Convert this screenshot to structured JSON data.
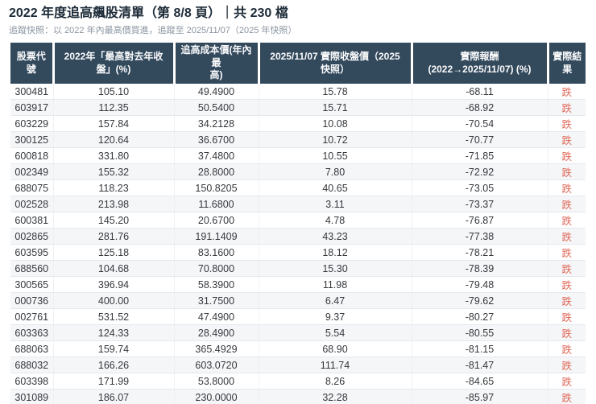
{
  "page": {
    "title": "2022 年度追高飆股清單（第 8/8 頁）｜共 230 檔",
    "subtitle": "追蹤快照：以 2022 年內最高價買進，追蹤至 2025/11/07（2025 年快照）"
  },
  "colors": {
    "header_bg": "#33495c",
    "header_text": "#fafbfc",
    "row_stripe": "#f4f6f8",
    "body_text": "#36393d",
    "result_down": "#e2695a",
    "title_text": "#1d2b38",
    "subtitle_text": "#8b95a1"
  },
  "chart_data": {
    "type": "table",
    "title": "2022 年度追高飆股清單（第 8/8 頁）｜共 230 檔",
    "subtitle": "追蹤快照：以 2022 年內最高價買進，追蹤至 2025/11/07（2025 年快照）",
    "page_info": {
      "current_page": "8",
      "total_pages": "8",
      "total_items": "230"
    },
    "columns": [
      "股票代\n號",
      "2022年「最高對去年收\n盤」(%)",
      "追高成本價(年內最\n高)",
      "2025/11/07 實際收盤價（2025\n快照）",
      "實際報酬\n(2022→2025/11/07) (%)",
      "實際結\n果"
    ],
    "rows": [
      [
        "300481",
        "105.10",
        "49.4900",
        "15.78",
        "-68.11",
        "跌"
      ],
      [
        "603917",
        "112.35",
        "50.5400",
        "15.71",
        "-68.92",
        "跌"
      ],
      [
        "603229",
        "157.84",
        "34.2128",
        "10.08",
        "-70.54",
        "跌"
      ],
      [
        "300125",
        "120.64",
        "36.6700",
        "10.72",
        "-70.77",
        "跌"
      ],
      [
        "600818",
        "331.80",
        "37.4800",
        "10.55",
        "-71.85",
        "跌"
      ],
      [
        "002349",
        "155.32",
        "28.8000",
        "7.80",
        "-72.92",
        "跌"
      ],
      [
        "688075",
        "118.23",
        "150.8205",
        "40.65",
        "-73.05",
        "跌"
      ],
      [
        "002528",
        "213.98",
        "11.6800",
        "3.11",
        "-73.37",
        "跌"
      ],
      [
        "600381",
        "145.20",
        "20.6700",
        "4.78",
        "-76.87",
        "跌"
      ],
      [
        "002865",
        "281.76",
        "191.1409",
        "43.23",
        "-77.38",
        "跌"
      ],
      [
        "603595",
        "125.18",
        "83.1600",
        "18.12",
        "-78.21",
        "跌"
      ],
      [
        "688560",
        "104.68",
        "70.8000",
        "15.30",
        "-78.39",
        "跌"
      ],
      [
        "300565",
        "396.94",
        "58.3900",
        "11.98",
        "-79.48",
        "跌"
      ],
      [
        "000736",
        "400.00",
        "31.7500",
        "6.47",
        "-79.62",
        "跌"
      ],
      [
        "002761",
        "531.52",
        "47.4900",
        "9.37",
        "-80.27",
        "跌"
      ],
      [
        "603363",
        "124.33",
        "28.4900",
        "5.54",
        "-80.55",
        "跌"
      ],
      [
        "688063",
        "159.74",
        "365.4929",
        "68.90",
        "-81.15",
        "跌"
      ],
      [
        "688032",
        "166.26",
        "603.0720",
        "111.74",
        "-81.47",
        "跌"
      ],
      [
        "603398",
        "171.99",
        "53.8000",
        "8.26",
        "-84.65",
        "跌"
      ],
      [
        "301089",
        "186.07",
        "230.0000",
        "32.28",
        "-85.97",
        "跌"
      ]
    ]
  }
}
